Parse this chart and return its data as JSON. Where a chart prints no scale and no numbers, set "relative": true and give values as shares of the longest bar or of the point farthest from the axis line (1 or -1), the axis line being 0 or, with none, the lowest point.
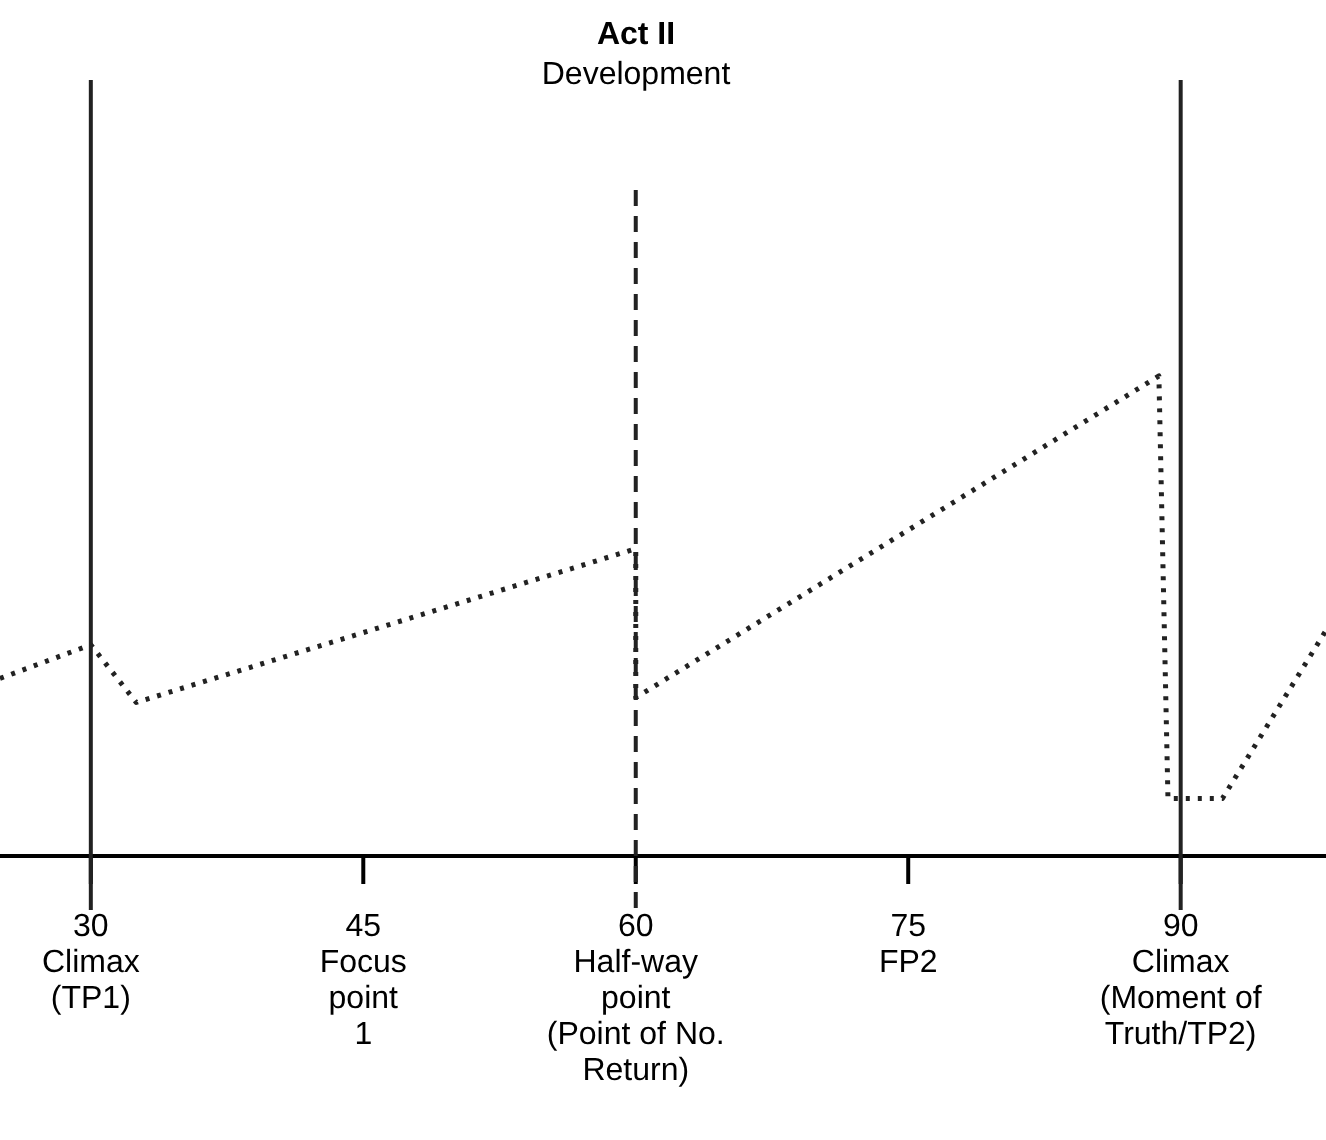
{
  "chart_data": {
    "type": "line",
    "title": "Act II",
    "subtitle": "Development",
    "relative": true,
    "line_style": "dotted",
    "marker": "none",
    "grid": false,
    "xlim": [
      25,
      98
    ],
    "xticks": [
      30,
      45,
      60,
      75,
      90
    ],
    "annotations": [
      "Climax\n(TP1)",
      "Focus\npoint\n1",
      "Half-way\npoint\n(Point of No.\nReturn)",
      "FP2",
      "Climax\n(Moment of\nTruth/TP2)"
    ],
    "series": [
      {
        "color": "#222222",
        "x": [
          25,
          30,
          32.5,
          60,
          60,
          88.8,
          89.3,
          92.3,
          98
        ],
        "values": [
          0.37,
          0.44,
          0.32,
          0.64,
          0.33,
          1,
          0.12,
          0.12,
          0.47
        ]
      }
    ],
    "ref_lines": [
      {
        "axis": "x",
        "value": 30,
        "line_style": "solid",
        "color": "#222222"
      },
      {
        "axis": "x",
        "value": 60,
        "line_style": "dashed",
        "color": "#222222"
      },
      {
        "axis": "x",
        "value": 90,
        "line_style": "solid",
        "color": "#222222"
      }
    ]
  }
}
